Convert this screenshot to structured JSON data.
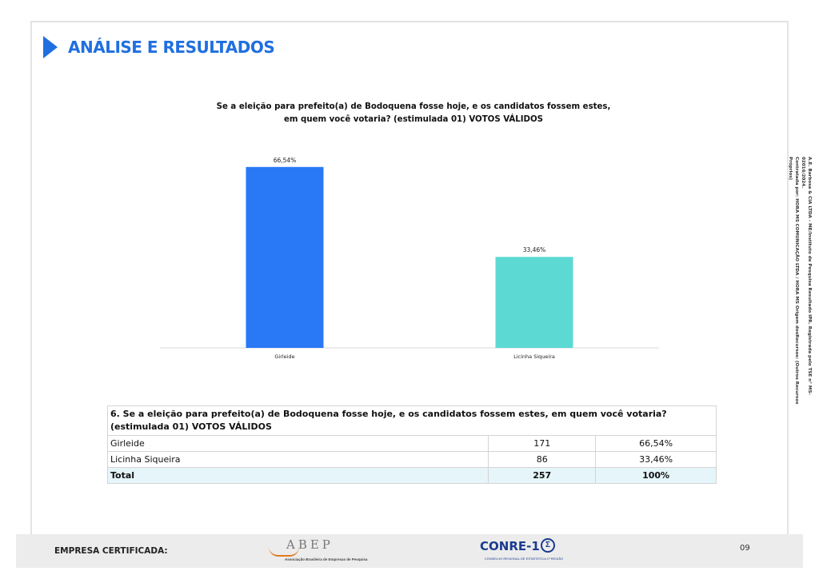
{
  "header": {
    "title": "ANÁLISE E RESULTADOS"
  },
  "chart_data": {
    "type": "bar",
    "title": "Se a eleição para prefeito(a) de Bodoquena fosse hoje, e os candidatos fossem estes, em quem você votaria? (estimulada 01) VOTOS VÁLIDOS",
    "categories": [
      "Girleide",
      "Licinha Siqueira"
    ],
    "values": [
      66.54,
      33.46
    ],
    "data_labels": [
      "66,54%",
      "33,46%"
    ],
    "colors": [
      "#2978f6",
      "#5cd9d3"
    ],
    "ylim": [
      0,
      70
    ],
    "grid": false,
    "legend": "none",
    "xlabel": "",
    "ylabel": ""
  },
  "table": {
    "question": "6. Se a eleição para prefeito(a) de Bodoquena fosse hoje, e os candidatos fossem estes, em quem você votaria? (estimulada 01) VOTOS VÁLIDOS",
    "rows": [
      {
        "name": "Girleide",
        "count": "171",
        "percent": "66,54%"
      },
      {
        "name": "Licinha Siqueira",
        "count": "86",
        "percent": "33,46%"
      }
    ],
    "total": {
      "name": "Total",
      "count": "257",
      "percent": "100%"
    }
  },
  "side_note": {
    "line1": "A.E. Barbosa & CIA LTDA - ME/Instituto de Pesquisa Resultado IPR. Registrada pelo TSE n° MS-02016/2024.",
    "line2": "Contratada por: HORA MS COMUNICAÇÃO LTDA / HORA MS Origem dosRecursos: (Outros Recursos Próprios)"
  },
  "footer": {
    "certified": "EMPRESA CERTIFICADA:",
    "abep": "ABEP",
    "abep_sub": "Associação Brasileira de Empresas de Pesquisa",
    "conre": "CONRE-1",
    "conre_sub": "CONSELHO REGIONAL DE ESTATÍSTICA 1ª REGIÃO",
    "page": "09"
  }
}
